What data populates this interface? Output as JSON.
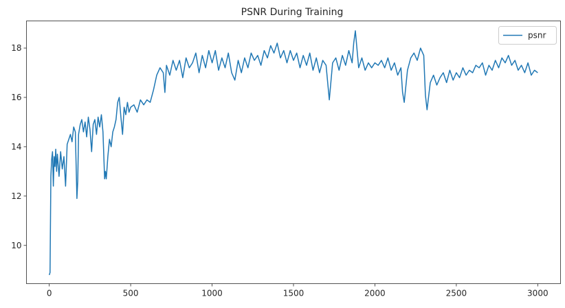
{
  "chart_data": {
    "type": "line",
    "title": "PSNR During Training",
    "xlabel": "",
    "ylabel": "",
    "xlim": [
      -140,
      3140
    ],
    "ylim": [
      8.45,
      19.1
    ],
    "xticks": [
      0,
      500,
      1000,
      1500,
      2000,
      2500,
      3000
    ],
    "xtick_labels": [
      "0",
      "500",
      "1000",
      "1500",
      "2000",
      "2500",
      "3000"
    ],
    "yticks": [
      10,
      12,
      14,
      16,
      18
    ],
    "ytick_labels": [
      "10",
      "12",
      "14",
      "16",
      "18"
    ],
    "grid": false,
    "legend": {
      "placement": "top-right",
      "entries": [
        "psnr"
      ]
    },
    "series": [
      {
        "name": "psnr",
        "color": "#1f77b4",
        "x": [
          0,
          5,
          10,
          15,
          20,
          25,
          30,
          35,
          40,
          45,
          50,
          60,
          70,
          80,
          90,
          100,
          110,
          120,
          130,
          140,
          150,
          160,
          170,
          175,
          180,
          190,
          200,
          210,
          220,
          230,
          240,
          250,
          260,
          270,
          280,
          290,
          300,
          310,
          320,
          330,
          340,
          345,
          350,
          360,
          370,
          380,
          390,
          400,
          410,
          420,
          430,
          440,
          450,
          460,
          470,
          480,
          490,
          500,
          520,
          540,
          560,
          580,
          600,
          620,
          640,
          660,
          680,
          700,
          710,
          720,
          740,
          760,
          780,
          800,
          820,
          840,
          860,
          880,
          900,
          920,
          940,
          960,
          980,
          1000,
          1020,
          1040,
          1060,
          1080,
          1100,
          1120,
          1140,
          1160,
          1180,
          1200,
          1220,
          1240,
          1260,
          1280,
          1300,
          1320,
          1340,
          1360,
          1380,
          1400,
          1420,
          1440,
          1460,
          1480,
          1500,
          1520,
          1540,
          1560,
          1580,
          1600,
          1620,
          1640,
          1660,
          1680,
          1700,
          1720,
          1740,
          1760,
          1780,
          1800,
          1820,
          1840,
          1860,
          1870,
          1880,
          1900,
          1920,
          1940,
          1960,
          1980,
          2000,
          2020,
          2040,
          2060,
          2080,
          2100,
          2120,
          2140,
          2160,
          2170,
          2180,
          2200,
          2220,
          2240,
          2260,
          2280,
          2300,
          2310,
          2320,
          2340,
          2360,
          2380,
          2400,
          2420,
          2440,
          2460,
          2480,
          2500,
          2520,
          2540,
          2560,
          2580,
          2600,
          2620,
          2640,
          2660,
          2680,
          2700,
          2720,
          2740,
          2760,
          2780,
          2800,
          2820,
          2840,
          2860,
          2880,
          2900,
          2920,
          2940,
          2960,
          2980,
          3000
        ],
        "y": [
          8.8,
          8.9,
          12.8,
          13.5,
          13.8,
          12.4,
          13.6,
          13.2,
          13.9,
          13.0,
          13.7,
          12.8,
          13.8,
          13.1,
          13.6,
          12.4,
          14.1,
          14.3,
          14.5,
          14.2,
          14.8,
          14.6,
          11.9,
          12.6,
          14.5,
          14.9,
          15.1,
          14.6,
          15.0,
          14.4,
          15.2,
          14.7,
          13.8,
          14.9,
          15.1,
          14.5,
          15.2,
          14.8,
          15.3,
          14.6,
          12.7,
          13.0,
          12.7,
          13.6,
          14.3,
          14.0,
          14.6,
          14.8,
          15.1,
          15.8,
          16.0,
          15.2,
          14.5,
          15.6,
          15.3,
          15.8,
          15.4,
          15.6,
          15.7,
          15.4,
          15.9,
          15.7,
          15.9,
          15.8,
          16.3,
          16.9,
          17.2,
          17.0,
          16.2,
          17.3,
          16.9,
          17.5,
          17.1,
          17.5,
          16.8,
          17.6,
          17.2,
          17.4,
          17.8,
          17.0,
          17.7,
          17.2,
          17.9,
          17.4,
          17.9,
          17.1,
          17.6,
          17.2,
          17.8,
          17.0,
          16.7,
          17.5,
          17.0,
          17.6,
          17.2,
          17.8,
          17.5,
          17.7,
          17.3,
          17.9,
          17.6,
          18.1,
          17.8,
          18.2,
          17.6,
          17.9,
          17.4,
          17.9,
          17.5,
          17.8,
          17.2,
          17.7,
          17.3,
          17.8,
          17.1,
          17.6,
          17.0,
          17.5,
          17.3,
          15.9,
          17.4,
          17.6,
          17.1,
          17.7,
          17.3,
          17.9,
          17.4,
          18.2,
          18.7,
          17.2,
          17.6,
          17.1,
          17.4,
          17.2,
          17.4,
          17.3,
          17.5,
          17.2,
          17.6,
          17.1,
          17.4,
          16.9,
          17.2,
          16.2,
          15.8,
          17.1,
          17.6,
          17.8,
          17.5,
          18.0,
          17.7,
          16.1,
          15.5,
          16.6,
          16.9,
          16.5,
          16.8,
          17.0,
          16.6,
          17.1,
          16.7,
          17.0,
          16.8,
          17.2,
          16.9,
          17.1,
          17.0,
          17.3,
          17.2,
          17.4,
          16.9,
          17.3,
          17.1,
          17.5,
          17.2,
          17.6,
          17.4,
          17.7,
          17.3,
          17.5,
          17.1,
          17.3,
          17.0,
          17.4,
          16.9,
          17.1,
          17.0
        ]
      }
    ]
  }
}
